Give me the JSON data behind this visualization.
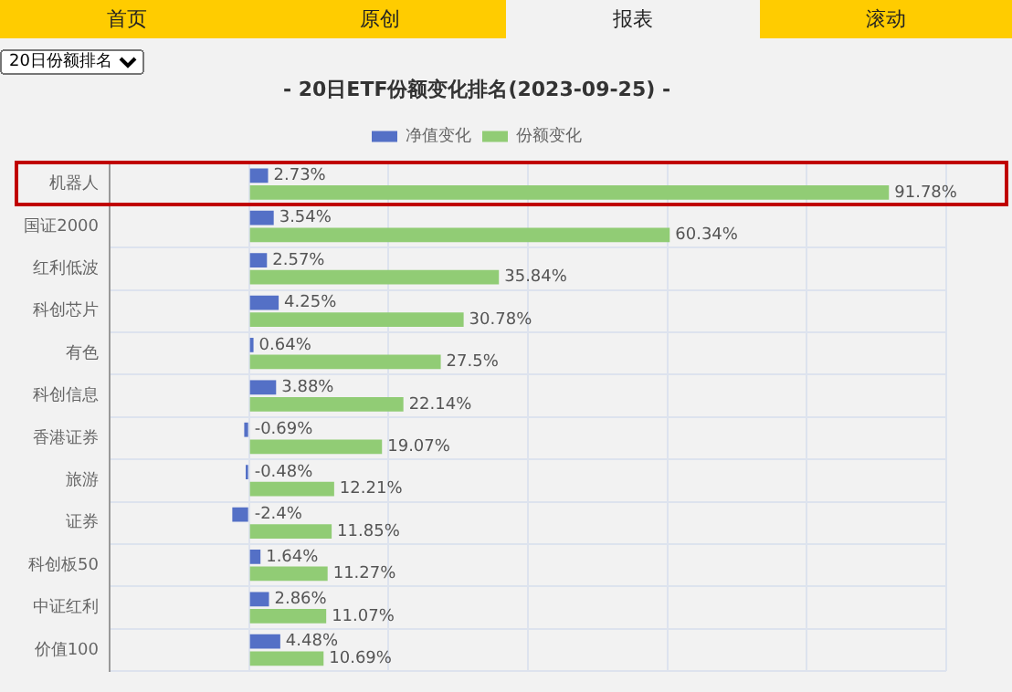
{
  "chart_data": {
    "type": "bar",
    "orientation": "horizontal",
    "title": "- 20日ETF份额变化排名(2023-09-25) -",
    "categories": [
      "机器人",
      "国证2000",
      "红利低波",
      "科创芯片",
      "有色",
      "科创信息",
      "香港证券",
      "旅游",
      "证券",
      "科创板50",
      "中证红利",
      "价值100"
    ],
    "series": [
      {
        "name": "净值变化",
        "color": "#5470c6",
        "values": [
          2.73,
          3.54,
          2.57,
          4.25,
          0.64,
          3.88,
          -0.69,
          -0.48,
          -2.4,
          1.64,
          2.86,
          4.48
        ],
        "value_labels": [
          "2.73%",
          "3.54%",
          "2.57%",
          "4.25%",
          "0.64%",
          "3.88%",
          "-0.69%",
          "-0.48%",
          "-2.4%",
          "1.64%",
          "2.86%",
          "4.48%"
        ]
      },
      {
        "name": "份额变化",
        "color": "#91cc75",
        "values": [
          91.78,
          60.34,
          35.84,
          30.78,
          27.5,
          22.14,
          19.07,
          12.21,
          11.85,
          11.27,
          11.07,
          10.69
        ],
        "value_labels": [
          "91.78%",
          "60.34%",
          "35.84%",
          "30.78%",
          "27.5%",
          "22.14%",
          "19.07%",
          "12.21%",
          "11.85%",
          "11.27%",
          "11.07%",
          "10.69%"
        ]
      }
    ],
    "annotations": [
      "首页",
      "原创",
      "报表",
      "滚动",
      "20日份额排名"
    ],
    "xlim": [
      -20,
      100
    ],
    "xticks": [
      -20,
      0,
      20,
      40,
      60,
      80,
      100
    ],
    "tick_labels": "y",
    "grid": true,
    "legend": "top"
  }
}
